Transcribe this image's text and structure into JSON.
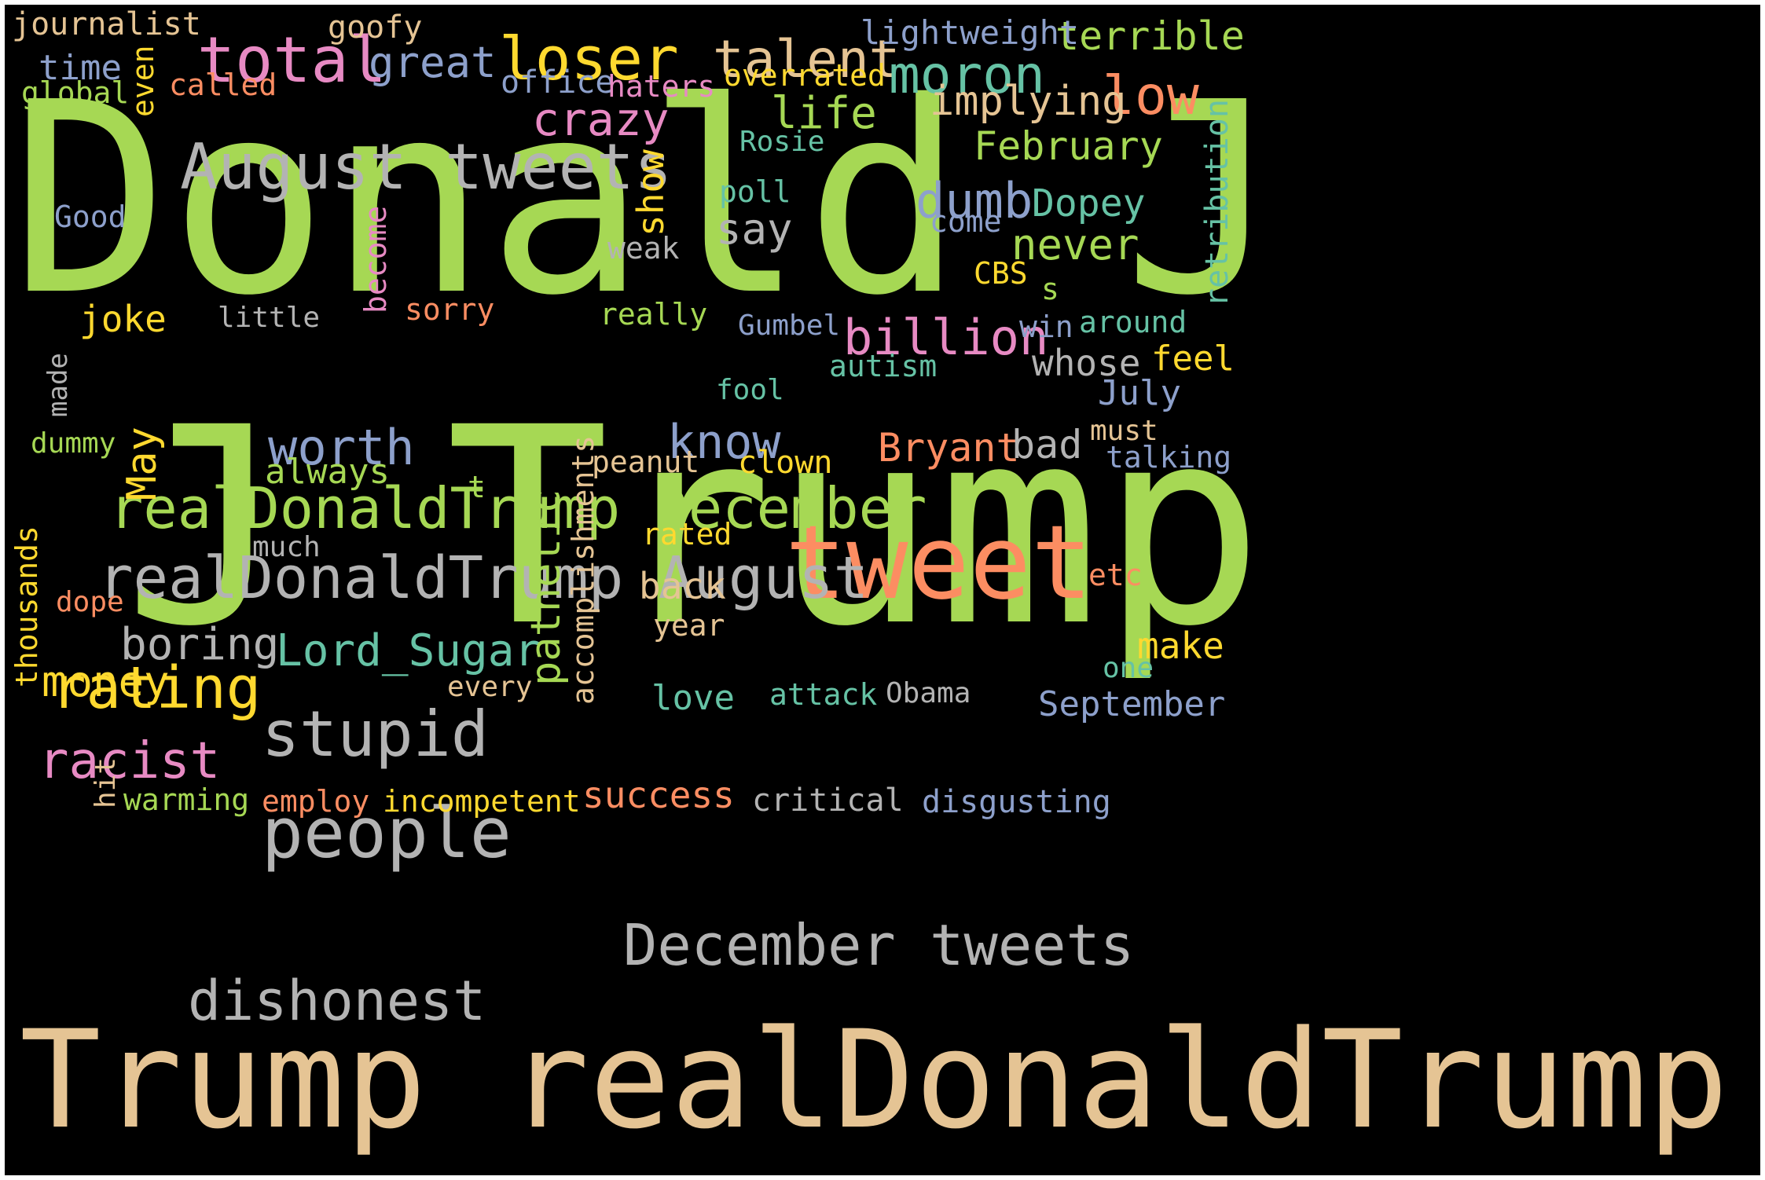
{
  "palette": {
    "green": "#a6d854",
    "tan": "#e5c494",
    "gray": "#b3b3b3",
    "orange": "#fc8d62",
    "pink": "#e78ac3",
    "blue": "#8da0cb",
    "teal": "#66c2a5",
    "yellow": "#ffd92f",
    "background": "#000000"
  },
  "words": {
    "donald_j": "Donald J",
    "trump_big": "Trump",
    "j_big": "J",
    "trump_realdonaldtrump": "Trump realDonaldTrump",
    "tweet": "tweet",
    "august_tweets": "August tweets",
    "people": "people",
    "december_tweets": "December tweets",
    "realdonaldtrump_december": "realDonaldTrump December",
    "realdonaldtrump_august": "realDonaldTrump August",
    "stupid": "stupid",
    "dishonest": "dishonest",
    "total": "total",
    "loser": "loser",
    "talent": "talent",
    "moron": "moron",
    "low": "low",
    "rating": "rating",
    "racist": "racist",
    "crazy": "crazy",
    "billion": "billion",
    "dumb": "dumb",
    "worth": "worth",
    "know": "know",
    "lord_sugar": "Lord_Sugar",
    "boring": "boring",
    "money": "money",
    "great": "great",
    "life": "life",
    "implying": "implying",
    "february": "February",
    "never": "never",
    "dopey": "Dopey",
    "terrible": "terrible",
    "lightweight": "lightweight",
    "journalist": "journalist",
    "goofy": "goofy",
    "time": "time",
    "global": "global",
    "called": "called",
    "even": "even",
    "office": "office",
    "haters": "haters",
    "overrated": "overrated",
    "rosie": "Rosie",
    "retribution": "retribution",
    "show": "show",
    "poll": "poll",
    "good": "Good",
    "say": "say",
    "come": "come",
    "weak": "weak",
    "become": "become",
    "cbs": "CBS",
    "s": "s",
    "joke": "joke",
    "little": "little",
    "sorry": "sorry",
    "really": "really",
    "gumbel": "Gumbel",
    "win": "win",
    "around": "around",
    "whose": "whose",
    "feel": "feel",
    "made": "made",
    "autism": "autism",
    "fool": "fool",
    "july": "July",
    "dummy": "dummy",
    "may": "May",
    "always": "always",
    "t": "t",
    "accomplishments": "accomplishments",
    "peanut": "peanut",
    "clown": "clown",
    "bryant": "Bryant",
    "bad": "bad",
    "must": "must",
    "talking": "talking",
    "pathetic": "pathetic",
    "much": "much",
    "rated": "rated",
    "thousands": "thousands",
    "etc": "etc",
    "dope": "dope",
    "back": "back",
    "year": "year",
    "make": "make",
    "one": "one",
    "every": "every",
    "love": "love",
    "attack": "attack",
    "obama": "Obama",
    "september": "September",
    "hit": "hit",
    "warming": "warming",
    "employ": "employ",
    "incompetent": "incompetent",
    "success": "success",
    "critical": "critical",
    "disgusting": "disgusting"
  }
}
